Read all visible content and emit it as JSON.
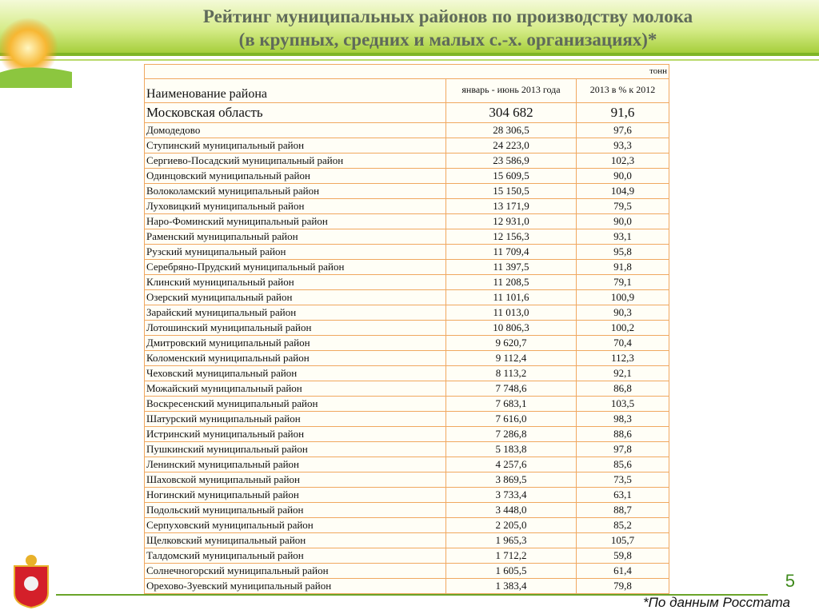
{
  "header": {
    "title_line1": "Рейтинг муниципальных районов по производству молока",
    "title_line2": "(в крупных, средних и малых  с.-х. организациях)*"
  },
  "table": {
    "unit": "тонн",
    "columns": [
      "Наименование района",
      "январь - июнь 2013 года",
      "2013 в % к 2012"
    ],
    "total": [
      "Московская область",
      "304 682",
      "91,6"
    ],
    "rows": [
      [
        "Домодедово",
        "28 306,5",
        "97,6"
      ],
      [
        "Ступинский муниципальный район",
        "24 223,0",
        "93,3"
      ],
      [
        "Сергиево-Посадский муниципальный район",
        "23 586,9",
        "102,3"
      ],
      [
        "Одинцовский муниципальный район",
        "15 609,5",
        "90,0"
      ],
      [
        "Волоколамский муниципальный район",
        "15 150,5",
        "104,9"
      ],
      [
        "Луховицкий муниципальный район",
        "13 171,9",
        "79,5"
      ],
      [
        "Наро-Фоминский муниципальный район",
        "12 931,0",
        "90,0"
      ],
      [
        "Раменский муниципальный район",
        "12 156,3",
        "93,1"
      ],
      [
        "Рузский муниципальный район",
        "11 709,4",
        "95,8"
      ],
      [
        "Серебряно-Прудский муниципальный район",
        "11 397,5",
        "91,8"
      ],
      [
        "Клинский муниципальный район",
        "11 208,5",
        "79,1"
      ],
      [
        "Озерский муниципальный район",
        "11 101,6",
        "100,9"
      ],
      [
        "Зарайский муниципальный район",
        "11 013,0",
        "90,3"
      ],
      [
        "Лотошинский муниципальный район",
        "10 806,3",
        "100,2"
      ],
      [
        "Дмитровский муниципальный район",
        "9 620,7",
        "70,4"
      ],
      [
        "Коломенский муниципальный район",
        "9 112,4",
        "112,3"
      ],
      [
        "Чеховский муниципальный район",
        "8 113,2",
        "92,1"
      ],
      [
        "Можайский муниципальный район",
        "7 748,6",
        "86,8"
      ],
      [
        "Воскресенский муниципальный район",
        "7 683,1",
        "103,5"
      ],
      [
        "Шатурский муниципальный район",
        "7 616,0",
        "98,3"
      ],
      [
        "Истринский муниципальный район",
        "7 286,8",
        "88,6"
      ],
      [
        "Пушкинский муниципальный район",
        "5 183,8",
        "97,8"
      ],
      [
        "Ленинский муниципальный район",
        "4 257,6",
        "85,6"
      ],
      [
        "Шаховской муниципальный район",
        "3 869,5",
        "73,5"
      ],
      [
        "Ногинский муниципальный район",
        "3 733,4",
        "63,1"
      ],
      [
        "Подольский муниципальный район",
        "3 448,0",
        "88,7"
      ],
      [
        "Серпуховский муниципальный район",
        "2 205,0",
        "85,2"
      ],
      [
        "Щелковский муниципальный район",
        "1 965,3",
        "105,7"
      ],
      [
        "Талдомский муниципальный район",
        "1 712,2",
        "59,8"
      ],
      [
        "Солнечногорский муниципальный район",
        "1 605,5",
        "61,4"
      ],
      [
        "Орехово-Зуевский муниципальный район",
        "1 383,4",
        "79,8"
      ]
    ]
  },
  "footer": {
    "page": "5",
    "note": "*По данным Росстата"
  }
}
